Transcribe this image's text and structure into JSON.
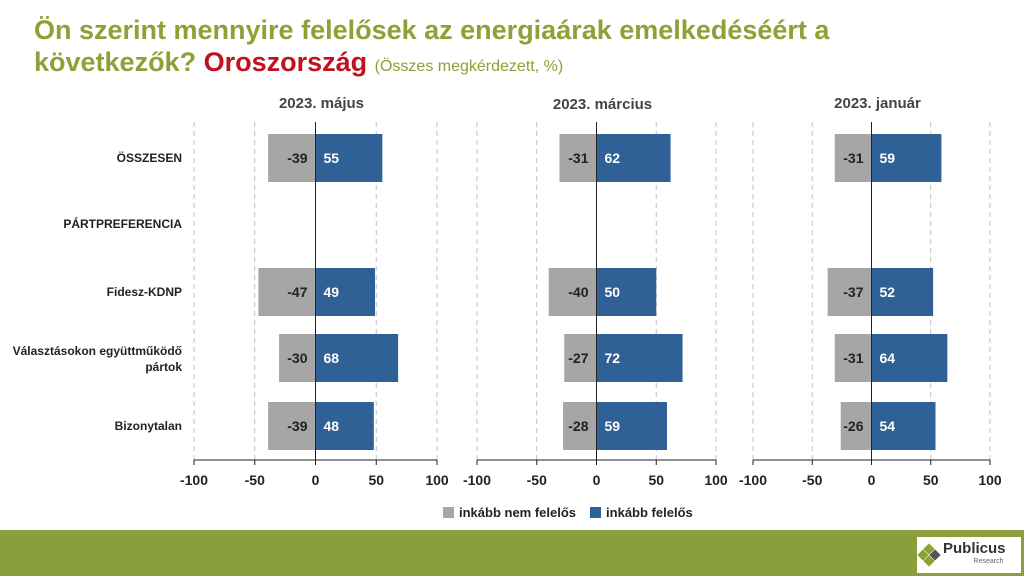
{
  "title": {
    "main": "Ön szerint mennyire felelősek az energiaárak emelkedéséért a következők?",
    "highlight": "Oroszország",
    "subtitle": "(Összes megkérdezett, %)"
  },
  "colors": {
    "nem": "#a6a6a6",
    "igen": "#2f6096",
    "title": "#8aa236",
    "highlight": "#c0111f",
    "footer": "#8a9e3e"
  },
  "row_labels": [
    "ÖSSZESEN",
    "PÁRTPREFERENCIA",
    "Fidesz-KDNP",
    "Választásokon együttműködő pártok",
    "Bizonytalan"
  ],
  "legend": {
    "nem": "inkább nem felelős",
    "igen": "inkább felelős"
  },
  "logo": {
    "name": "Publicus",
    "sub": "Research"
  },
  "chart_data": [
    {
      "type": "bar",
      "title": "2023. május",
      "categories": [
        "ÖSSZESEN",
        "PÁRTPREFERENCIA",
        "Fidesz-KDNP",
        "Választásokon együttműködő pártok",
        "Bizonytalan"
      ],
      "series": [
        {
          "name": "inkább nem felelős",
          "values": [
            -39,
            null,
            -47,
            -30,
            -39
          ]
        },
        {
          "name": "inkább felelős",
          "values": [
            55,
            null,
            49,
            68,
            48
          ]
        }
      ],
      "xlim": [
        -100,
        100
      ],
      "xticks": [
        -100,
        -50,
        0,
        50,
        100
      ],
      "grid": true
    },
    {
      "type": "bar",
      "title": "2023. március",
      "categories": [
        "ÖSSZESEN",
        "PÁRTPREFERENCIA",
        "Fidesz-KDNP",
        "Választásokon együttműködő pártok",
        "Bizonytalan"
      ],
      "series": [
        {
          "name": "inkább nem felelős",
          "values": [
            -31,
            null,
            -40,
            -27,
            -28
          ]
        },
        {
          "name": "inkább felelős",
          "values": [
            62,
            null,
            50,
            72,
            59
          ]
        }
      ],
      "xlim": [
        -100,
        100
      ],
      "xticks": [
        -100,
        -50,
        0,
        50,
        100
      ],
      "grid": true
    },
    {
      "type": "bar",
      "title": "2023. január",
      "categories": [
        "ÖSSZESEN",
        "PÁRTPREFERENCIA",
        "Fidesz-KDNP",
        "Választásokon együttműködő pártok",
        "Bizonytalan"
      ],
      "series": [
        {
          "name": "inkább nem felelős",
          "values": [
            -31,
            null,
            -37,
            -31,
            -26
          ]
        },
        {
          "name": "inkább felelős",
          "values": [
            59,
            null,
            52,
            64,
            54
          ]
        }
      ],
      "xlim": [
        -100,
        100
      ],
      "xticks": [
        -100,
        -50,
        0,
        50,
        100
      ],
      "grid": true
    }
  ]
}
